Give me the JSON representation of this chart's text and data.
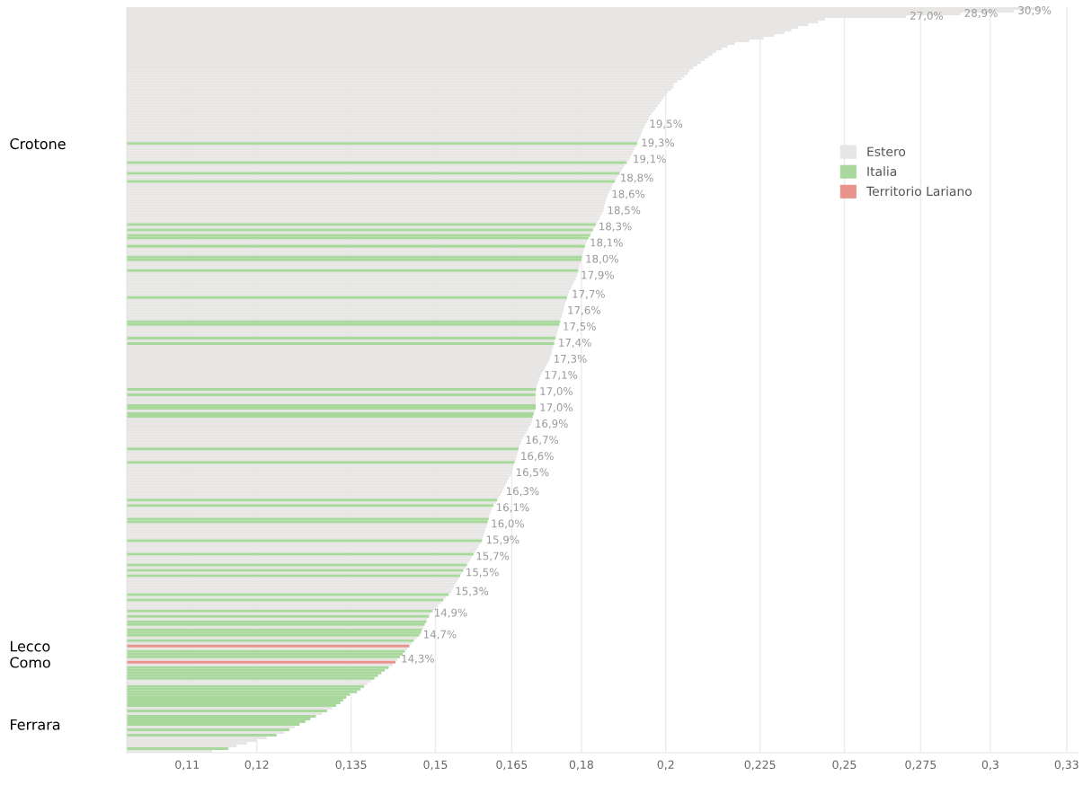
{
  "chart_data": {
    "type": "bar",
    "orientation": "horizontal",
    "log": "x",
    "xlim": [
      0.102,
      0.335
    ],
    "xticks": [
      {
        "value": 0.11,
        "label": "0,11"
      },
      {
        "value": 0.12,
        "label": "0,12"
      },
      {
        "value": 0.135,
        "label": "0,135"
      },
      {
        "value": 0.15,
        "label": "0,15"
      },
      {
        "value": 0.165,
        "label": "0,165"
      },
      {
        "value": 0.18,
        "label": "0,18"
      },
      {
        "value": 0.2,
        "label": "0,2"
      },
      {
        "value": 0.225,
        "label": "0,225"
      },
      {
        "value": 0.25,
        "label": "0,25"
      },
      {
        "value": 0.275,
        "label": "0,275"
      },
      {
        "value": 0.3,
        "label": "0,3"
      },
      {
        "value": 0.33,
        "label": "0,33"
      }
    ],
    "grid": "x",
    "legend": "top right",
    "categories": [
      null,
      null,
      null,
      null,
      null,
      null,
      null,
      null,
      null,
      null,
      null,
      null,
      null,
      null,
      null,
      null,
      null,
      null,
      null,
      null,
      null,
      null,
      null,
      null,
      null,
      null,
      null,
      null,
      null,
      null,
      null,
      null,
      null,
      null,
      null,
      null,
      null,
      null,
      null,
      null,
      null,
      null,
      null,
      null,
      null,
      null,
      null,
      null,
      null,
      null,
      "Crotone",
      null,
      null,
      null,
      null,
      null,
      null,
      null,
      null,
      null,
      null,
      null,
      null,
      null,
      null,
      null,
      null,
      null,
      null,
      null,
      null,
      null,
      null,
      null,
      null,
      null,
      null,
      null,
      null,
      null,
      null,
      null,
      null,
      null,
      null,
      null,
      null,
      null,
      null,
      null,
      null,
      null,
      null,
      null,
      null,
      null,
      null,
      null,
      null,
      null,
      null,
      null,
      null,
      null,
      null,
      null,
      null,
      null,
      null,
      null,
      null,
      null,
      null,
      null,
      null,
      null,
      null,
      null,
      null,
      null,
      null,
      null,
      null,
      null,
      null,
      null,
      null,
      null,
      null,
      null,
      null,
      null,
      null,
      null,
      null,
      null,
      null,
      null,
      null,
      null,
      null,
      null,
      null,
      null,
      null,
      null,
      null,
      null,
      null,
      null,
      null,
      null,
      null,
      null,
      null,
      null,
      null,
      null,
      null,
      null,
      null,
      null,
      null,
      null,
      null,
      null,
      null,
      null,
      null,
      null,
      null,
      null,
      null,
      null,
      null,
      null,
      null,
      null,
      null,
      null,
      null,
      null,
      null,
      null,
      null,
      null,
      null,
      null,
      null,
      null,
      null,
      null,
      null,
      null,
      null,
      null,
      null,
      null,
      null,
      null,
      null,
      null,
      null,
      null,
      null,
      null,
      null,
      null,
      null,
      null,
      null,
      null,
      null,
      null,
      null,
      null,
      null,
      null,
      null,
      null,
      null,
      null,
      null,
      null,
      null,
      null,
      null,
      null,
      null,
      null,
      null,
      null,
      null,
      null,
      null,
      null,
      "Lecco",
      null,
      null,
      null,
      null,
      null,
      "Como",
      null,
      null,
      null,
      null,
      null,
      null,
      null,
      null,
      null,
      null,
      null,
      null,
      null,
      null,
      null,
      null,
      null,
      null,
      null,
      null,
      null,
      null,
      "Ferrara",
      null,
      null,
      null,
      null,
      null,
      null,
      null,
      null,
      null,
      null
    ],
    "value_labels": [
      null,
      "30,9%",
      "28,9%",
      "27,0%",
      null,
      null,
      null,
      null,
      null,
      null,
      null,
      null,
      null,
      null,
      null,
      null,
      null,
      null,
      null,
      null,
      null,
      null,
      null,
      null,
      null,
      null,
      null,
      null,
      null,
      null,
      null,
      null,
      null,
      null,
      null,
      null,
      null,
      null,
      null,
      null,
      null,
      null,
      null,
      "19,5%",
      null,
      null,
      null,
      null,
      null,
      null,
      "19,3%",
      null,
      null,
      null,
      null,
      null,
      "19,1%",
      null,
      null,
      null,
      null,
      null,
      null,
      "18,8%",
      null,
      null,
      null,
      null,
      null,
      "18,6%",
      null,
      null,
      null,
      null,
      null,
      "18,5%",
      null,
      null,
      null,
      null,
      null,
      "18,3%",
      null,
      null,
      null,
      null,
      null,
      "18,1%",
      null,
      null,
      null,
      null,
      null,
      "18,0%",
      null,
      null,
      null,
      null,
      null,
      "17,9%",
      null,
      null,
      null,
      null,
      null,
      null,
      "17,7%",
      null,
      null,
      null,
      null,
      null,
      "17,6%",
      null,
      null,
      null,
      null,
      null,
      "17,5%",
      null,
      null,
      null,
      null,
      null,
      "17,4%",
      null,
      null,
      null,
      null,
      null,
      "17,3%",
      null,
      null,
      null,
      null,
      null,
      "17,1%",
      null,
      null,
      null,
      null,
      null,
      "17,0%",
      null,
      null,
      null,
      null,
      null,
      "17,0%",
      null,
      null,
      null,
      null,
      null,
      "16,9%",
      null,
      null,
      null,
      null,
      null,
      "16,7%",
      null,
      null,
      null,
      null,
      null,
      "16,6%",
      null,
      null,
      null,
      null,
      null,
      "16,5%",
      null,
      null,
      null,
      null,
      null,
      null,
      "16,3%",
      null,
      null,
      null,
      null,
      null,
      "16,1%",
      null,
      null,
      null,
      null,
      null,
      "16,0%",
      null,
      null,
      null,
      null,
      null,
      "15,9%",
      null,
      null,
      null,
      null,
      null,
      "15,7%",
      null,
      null,
      null,
      null,
      null,
      "15,5%",
      null,
      null,
      null,
      null,
      null,
      null,
      "15,3%",
      null,
      null,
      null,
      null,
      null,
      null,
      null,
      "14,9%",
      null,
      null,
      null,
      null,
      null,
      null,
      null,
      "14,7%",
      null,
      null,
      null,
      null,
      null,
      null,
      null,
      null,
      "14,3%",
      null,
      null,
      null,
      null,
      null,
      null,
      null,
      null,
      null,
      null,
      null,
      null,
      null,
      null,
      null,
      null,
      null,
      null,
      null,
      null,
      null,
      null,
      null,
      null,
      null,
      null,
      null,
      null,
      null,
      null,
      null,
      null,
      null,
      null
    ],
    "series": [
      {
        "name": "Estero",
        "color": "#e7e6e4",
        "values": [
          0.319,
          0.309,
          0.289,
          0.27,
          0.244,
          0.242,
          0.239,
          0.236,
          0.234,
          0.232,
          0.229,
          0.226,
          0.222,
          0.218,
          0.216,
          0.2145,
          0.213,
          0.212,
          0.211,
          0.21,
          0.209,
          0.208,
          0.207,
          0.206,
          0.2055,
          0.2047,
          0.204,
          0.203,
          0.202,
          0.2019,
          0.2014,
          0.2005,
          0.2,
          0.1995,
          0.199,
          0.1985,
          0.198,
          0.1975,
          0.197,
          0.1965,
          0.196,
          0.1957,
          0.1953,
          0.195,
          0.1947,
          0.1944,
          0.1941,
          0.1938,
          0.1935,
          0.1932,
          null,
          0.1927,
          0.1923,
          0.192,
          0.1917,
          0.1913,
          0.191,
          null,
          0.19,
          0.1896,
          0.1892,
          null,
          0.1884,
          0.188,
          null,
          0.1873,
          0.187,
          0.1867,
          0.1863,
          0.186,
          0.1858,
          0.1856,
          0.1854,
          0.1852,
          0.1851,
          0.185,
          0.1846,
          0.1843,
          0.184,
          0.1836,
          null,
          0.183,
          null,
          0.1823,
          null,
          null,
          0.1813,
          0.181,
          null,
          0.1806,
          0.1804,
          0.1803,
          null,
          null,
          0.1798,
          0.1796,
          0.1795,
          null,
          0.1791,
          0.179,
          0.1787,
          0.1784,
          0.1781,
          0.1778,
          0.1775,
          0.1772,
          0.177,
          null,
          0.1766,
          0.1764,
          0.1762,
          0.1761,
          0.176,
          0.1758,
          0.1756,
          0.1754,
          null,
          null,
          0.175,
          0.1748,
          0.1746,
          0.1744,
          null,
          0.1741,
          null,
          0.1738,
          0.1736,
          0.1734,
          0.1733,
          0.1731,
          0.173,
          0.1727,
          0.1723,
          0.172,
          0.1717,
          0.1713,
          0.171,
          0.1708,
          0.1706,
          0.1704,
          0.1702,
          null,
          0.17,
          null,
          0.17,
          0.17,
          0.17,
          null,
          null,
          0.1698,
          null,
          null,
          0.1693,
          0.1692,
          0.169,
          0.1686,
          0.1683,
          0.168,
          0.1676,
          0.1673,
          0.167,
          0.1668,
          0.1666,
          null,
          0.1663,
          0.1661,
          0.166,
          0.1658,
          null,
          0.1654,
          0.1653,
          0.1651,
          0.165,
          0.1647,
          0.1644,
          0.1641,
          0.1638,
          0.1635,
          0.1632,
          0.163,
          0.1627,
          0.1623,
          null,
          0.1617,
          null,
          0.161,
          0.1608,
          0.1606,
          0.1604,
          null,
          null,
          0.16,
          0.1598,
          0.1596,
          0.1595,
          0.1593,
          0.1591,
          null,
          0.1587,
          0.1583,
          0.158,
          0.1577,
          null,
          0.157,
          0.1567,
          0.1563,
          null,
          0.1557,
          null,
          0.155,
          null,
          0.1544,
          0.1541,
          0.1538,
          0.1535,
          0.1532,
          0.153,
          null,
          0.152,
          null,
          0.151,
          0.1505,
          0.15,
          null,
          0.149,
          null,
          0.1485,
          null,
          null,
          0.1478,
          null,
          null,
          null,
          0.1465,
          null,
          0.1456,
          null,
          0.1448,
          null,
          null,
          null,
          0.143,
          null,
          0.1422,
          null,
          null,
          null,
          null,
          null,
          0.1384,
          0.1378,
          null,
          null,
          null,
          null,
          null,
          null,
          null,
          null,
          0.1318,
          null,
          0.1302,
          null,
          null,
          null,
          null,
          0.1258,
          null,
          0.1242,
          null,
          0.1215,
          0.12,
          0.1185,
          0.117,
          null,
          0.1135
        ]
      },
      {
        "name": "Italia",
        "color": "#a9d89c",
        "values": [
          null,
          null,
          null,
          null,
          null,
          null,
          null,
          null,
          null,
          null,
          null,
          null,
          null,
          null,
          null,
          null,
          null,
          null,
          null,
          null,
          null,
          null,
          null,
          null,
          null,
          null,
          null,
          null,
          null,
          null,
          null,
          null,
          null,
          null,
          null,
          null,
          null,
          null,
          null,
          null,
          null,
          null,
          null,
          null,
          null,
          null,
          null,
          null,
          null,
          null,
          0.193,
          null,
          null,
          null,
          null,
          null,
          null,
          0.1905,
          null,
          null,
          null,
          0.1888,
          null,
          null,
          0.1877,
          null,
          null,
          null,
          null,
          null,
          null,
          null,
          null,
          null,
          null,
          null,
          null,
          null,
          null,
          null,
          0.1833,
          null,
          0.1826,
          null,
          0.182,
          0.1816,
          null,
          null,
          0.1808,
          null,
          null,
          null,
          0.1801,
          0.18,
          null,
          null,
          null,
          0.1793,
          null,
          null,
          null,
          null,
          null,
          null,
          null,
          null,
          null,
          0.1768,
          null,
          null,
          null,
          null,
          null,
          null,
          null,
          null,
          0.1753,
          0.1751,
          null,
          null,
          null,
          null,
          0.1743,
          null,
          0.174,
          null,
          null,
          null,
          null,
          null,
          null,
          null,
          null,
          null,
          null,
          null,
          null,
          null,
          null,
          null,
          null,
          0.1701,
          null,
          0.17,
          null,
          null,
          null,
          0.17,
          0.17,
          null,
          0.1696,
          0.1694,
          null,
          null,
          null,
          null,
          null,
          null,
          null,
          null,
          null,
          null,
          null,
          0.1664,
          null,
          null,
          null,
          null,
          0.1656,
          null,
          null,
          null,
          null,
          null,
          null,
          null,
          null,
          null,
          null,
          null,
          null,
          null,
          0.162,
          null,
          0.1613,
          null,
          null,
          null,
          null,
          0.1603,
          0.1601,
          null,
          null,
          null,
          null,
          null,
          null,
          0.159,
          null,
          null,
          null,
          null,
          0.1573,
          null,
          null,
          null,
          0.156,
          null,
          0.1553,
          null,
          0.1547,
          null,
          null,
          null,
          null,
          null,
          null,
          0.1525,
          null,
          0.1515,
          null,
          null,
          null,
          0.1495,
          null,
          0.1488,
          null,
          0.1483,
          0.148,
          null,
          0.1475,
          0.1473,
          0.147,
          null,
          0.146,
          null,
          null,
          null,
          0.1444,
          0.144,
          0.1435,
          null,
          null,
          null,
          0.1415,
          0.1408,
          0.1402,
          0.1396,
          0.139,
          null,
          null,
          0.1372,
          0.1366,
          0.136,
          0.1348,
          0.1342,
          0.1337,
          0.1332,
          0.1325,
          null,
          0.131,
          null,
          0.1292,
          0.1283,
          0.1275,
          0.1266,
          null,
          0.125,
          null,
          0.123,
          null,
          null,
          null,
          null,
          0.1158,
          null
        ]
      },
      {
        "name": "Territorio Lariano",
        "color": "#e8938c",
        "values": [
          null,
          null,
          null,
          null,
          null,
          null,
          null,
          null,
          null,
          null,
          null,
          null,
          null,
          null,
          null,
          null,
          null,
          null,
          null,
          null,
          null,
          null,
          null,
          null,
          null,
          null,
          null,
          null,
          null,
          null,
          null,
          null,
          null,
          null,
          null,
          null,
          null,
          null,
          null,
          null,
          null,
          null,
          null,
          null,
          null,
          null,
          null,
          null,
          null,
          null,
          null,
          null,
          null,
          null,
          null,
          null,
          null,
          null,
          null,
          null,
          null,
          null,
          null,
          null,
          null,
          null,
          null,
          null,
          null,
          null,
          null,
          null,
          null,
          null,
          null,
          null,
          null,
          null,
          null,
          null,
          null,
          null,
          null,
          null,
          null,
          null,
          null,
          null,
          null,
          null,
          null,
          null,
          null,
          null,
          null,
          null,
          null,
          null,
          null,
          null,
          null,
          null,
          null,
          null,
          null,
          null,
          null,
          null,
          null,
          null,
          null,
          null,
          null,
          null,
          null,
          null,
          null,
          null,
          null,
          null,
          null,
          null,
          null,
          null,
          null,
          null,
          null,
          null,
          null,
          null,
          null,
          null,
          null,
          null,
          null,
          null,
          null,
          null,
          null,
          null,
          null,
          null,
          null,
          null,
          null,
          null,
          null,
          null,
          null,
          null,
          null,
          null,
          null,
          null,
          null,
          null,
          null,
          null,
          null,
          null,
          null,
          null,
          null,
          null,
          null,
          null,
          null,
          null,
          null,
          null,
          null,
          null,
          null,
          null,
          null,
          null,
          null,
          null,
          null,
          null,
          null,
          null,
          null,
          null,
          null,
          null,
          null,
          null,
          null,
          null,
          null,
          null,
          null,
          null,
          null,
          null,
          null,
          null,
          null,
          null,
          null,
          null,
          null,
          null,
          null,
          null,
          null,
          null,
          null,
          null,
          null,
          null,
          null,
          null,
          null,
          null,
          null,
          null,
          null,
          null,
          null,
          null,
          null,
          null,
          null,
          null,
          null,
          null,
          null,
          null,
          null,
          null,
          null,
          null,
          null,
          null,
          0.1452,
          null,
          null,
          null,
          null,
          null,
          0.1427,
          null,
          null,
          null,
          null,
          null,
          null,
          null,
          null,
          null,
          null,
          null,
          null,
          null,
          null,
          null,
          null,
          null,
          null,
          null,
          null,
          null,
          null,
          null,
          null,
          null,
          null,
          null,
          null,
          null,
          null,
          null,
          null,
          null
        ]
      }
    ]
  }
}
